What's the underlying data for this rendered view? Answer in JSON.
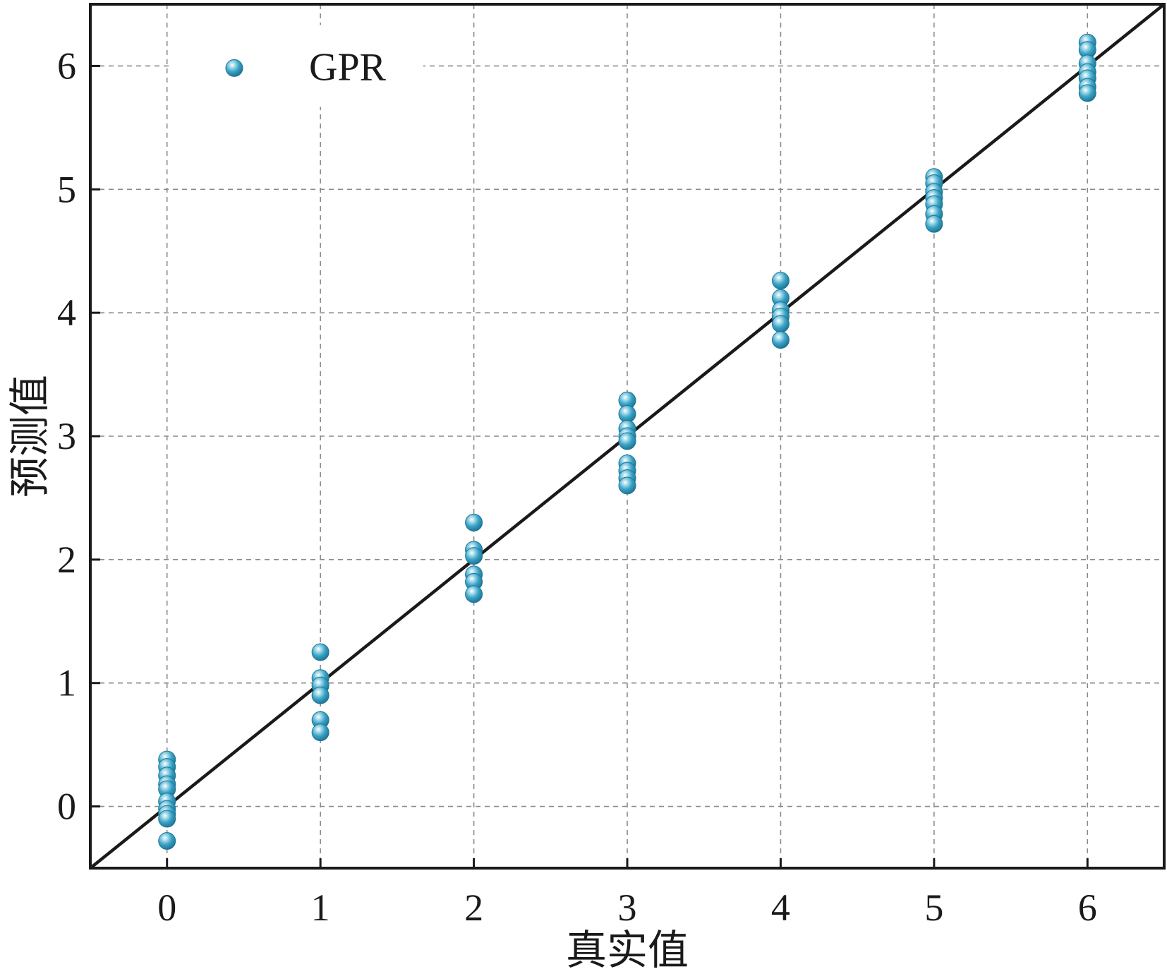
{
  "chart_data": {
    "type": "scatter",
    "xlabel": "真实值",
    "ylabel": "预测值",
    "xlim": [
      -0.5,
      6.5
    ],
    "ylim": [
      -0.5,
      6.5
    ],
    "xticks": [
      "0",
      "1",
      "2",
      "3",
      "4",
      "5",
      "6"
    ],
    "yticks": [
      "0",
      "1",
      "2",
      "3",
      "4",
      "5",
      "6"
    ],
    "grid": true,
    "legend_position": "top-left",
    "reference_line": "y = x",
    "series": [
      {
        "name": "GPR",
        "color": "#3aa3c6",
        "points": [
          [
            0,
            0.38
          ],
          [
            0,
            0.32
          ],
          [
            0,
            0.25
          ],
          [
            0,
            0.18
          ],
          [
            0,
            0.14
          ],
          [
            0,
            0.04
          ],
          [
            0,
            -0.02
          ],
          [
            0,
            -0.06
          ],
          [
            0,
            -0.1
          ],
          [
            0,
            -0.28
          ],
          [
            1,
            1.25
          ],
          [
            1,
            1.04
          ],
          [
            1,
            0.98
          ],
          [
            1,
            0.9
          ],
          [
            1,
            0.7
          ],
          [
            1,
            0.6
          ],
          [
            2,
            2.3
          ],
          [
            2,
            2.08
          ],
          [
            2,
            2.03
          ],
          [
            2,
            1.88
          ],
          [
            2,
            1.82
          ],
          [
            2,
            1.72
          ],
          [
            3,
            3.29
          ],
          [
            3,
            3.18
          ],
          [
            3,
            3.06
          ],
          [
            3,
            3.0
          ],
          [
            3,
            2.96
          ],
          [
            3,
            2.78
          ],
          [
            3,
            2.72
          ],
          [
            3,
            2.66
          ],
          [
            3,
            2.6
          ],
          [
            4,
            4.26
          ],
          [
            4,
            4.12
          ],
          [
            4,
            4.02
          ],
          [
            4,
            3.97
          ],
          [
            4,
            3.91
          ],
          [
            4,
            3.78
          ],
          [
            5,
            5.1
          ],
          [
            5,
            5.05
          ],
          [
            5,
            4.98
          ],
          [
            5,
            4.93
          ],
          [
            5,
            4.88
          ],
          [
            5,
            4.8
          ],
          [
            5,
            4.72
          ],
          [
            6,
            6.19
          ],
          [
            6,
            6.13
          ],
          [
            6,
            6.02
          ],
          [
            6,
            5.95
          ],
          [
            6,
            5.9
          ],
          [
            6,
            5.83
          ],
          [
            6,
            5.78
          ]
        ]
      }
    ]
  }
}
